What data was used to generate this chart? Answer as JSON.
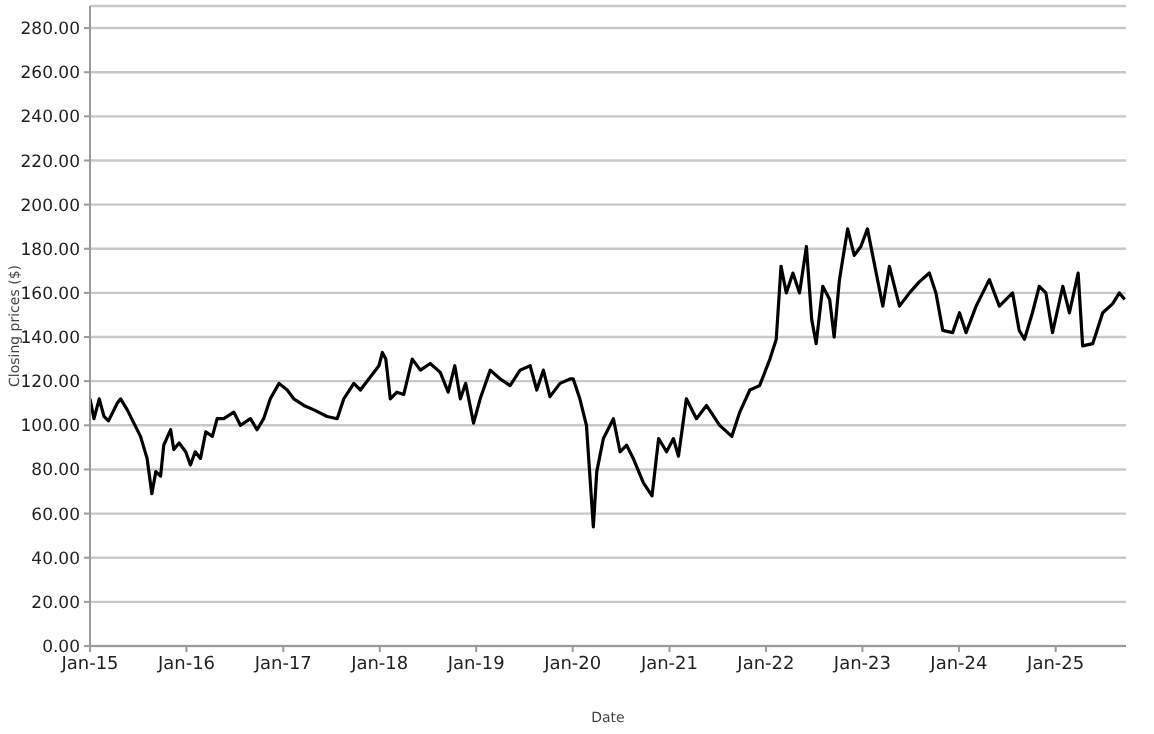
{
  "chart_data": {
    "type": "line",
    "xlabel": "Date",
    "ylabel": "Closing prices ($)",
    "x": [
      "2015-01-01",
      "2015-01-16",
      "2015-02-05",
      "2015-02-23",
      "2015-03-12",
      "2015-04-14",
      "2015-04-27",
      "2015-05-22",
      "2015-06-16",
      "2015-07-11",
      "2015-08-05",
      "2015-08-23",
      "2015-09-07",
      "2015-09-25",
      "2015-10-07",
      "2015-11-02",
      "2015-11-14",
      "2015-12-04",
      "2015-12-29",
      "2016-01-16",
      "2016-02-03",
      "2016-02-23",
      "2016-03-14",
      "2016-04-08",
      "2016-04-26",
      "2016-05-21",
      "2016-06-28",
      "2016-07-23",
      "2016-08-30",
      "2016-09-24",
      "2016-10-19",
      "2016-11-13",
      "2016-12-16",
      "2017-01-16",
      "2017-02-10",
      "2017-03-20",
      "2017-04-27",
      "2017-06-16",
      "2017-07-24",
      "2017-08-18",
      "2017-09-25",
      "2017-10-20",
      "2017-11-27",
      "2017-12-29",
      "2018-01-11",
      "2018-01-24",
      "2018-02-10",
      "2018-03-07",
      "2018-04-02",
      "2018-05-04",
      "2018-06-04",
      "2018-07-11",
      "2018-08-18",
      "2018-09-17",
      "2018-10-12",
      "2018-11-02",
      "2018-11-22",
      "2018-12-22",
      "2019-01-16",
      "2019-02-23",
      "2019-04-02",
      "2019-05-09",
      "2019-06-16",
      "2019-07-24",
      "2019-08-18",
      "2019-09-12",
      "2019-10-07",
      "2019-11-14",
      "2019-12-22",
      "2020-01-03",
      "2020-01-28",
      "2020-02-22",
      "2020-03-19",
      "2020-04-01",
      "2020-04-26",
      "2020-06-03",
      "2020-06-28",
      "2020-07-23",
      "2020-08-17",
      "2020-09-24",
      "2020-10-27",
      "2020-11-21",
      "2020-12-21",
      "2021-01-16",
      "2021-02-04",
      "2021-03-06",
      "2021-04-13",
      "2021-05-21",
      "2021-07-10",
      "2021-08-25",
      "2021-09-24",
      "2021-11-01",
      "2021-12-08",
      "2022-01-16",
      "2022-02-09",
      "2022-02-27",
      "2022-03-19",
      "2022-04-13",
      "2022-05-08",
      "2022-06-03",
      "2022-06-23",
      "2022-07-10",
      "2022-08-04",
      "2022-08-30",
      "2022-09-16",
      "2022-10-06",
      "2022-11-06",
      "2022-12-01",
      "2022-12-26",
      "2023-01-20",
      "2023-02-22",
      "2023-03-19",
      "2023-04-13",
      "2023-05-21",
      "2023-06-28",
      "2023-08-04",
      "2023-09-11",
      "2023-10-06",
      "2023-11-01",
      "2023-12-08",
      "2024-01-03",
      "2024-01-28",
      "2024-03-06",
      "2024-04-25",
      "2024-06-02",
      "2024-07-22",
      "2024-08-16",
      "2024-09-05",
      "2024-10-05",
      "2024-10-31",
      "2024-11-25",
      "2024-12-20",
      "2025-01-28",
      "2025-02-22",
      "2025-03-27",
      "2025-04-13",
      "2025-05-21",
      "2025-06-28",
      "2025-08-04",
      "2025-08-30",
      "2025-09-19"
    ],
    "series": [
      {
        "color": "#000000",
        "values": [
          112,
          103,
          112,
          104,
          102,
          110,
          112,
          107,
          101,
          95,
          85,
          69,
          79,
          77,
          91,
          98,
          89,
          92,
          88,
          82,
          88,
          85,
          97,
          95,
          103,
          103,
          106,
          100,
          103,
          98,
          103,
          112,
          119,
          116,
          112,
          109,
          107,
          104,
          103,
          112,
          119,
          116,
          122,
          127,
          133,
          130,
          112,
          115,
          114,
          130,
          125,
          128,
          124,
          115,
          127,
          112,
          119,
          101,
          112,
          125,
          121,
          118,
          125,
          127,
          116,
          125,
          113,
          119,
          121,
          121,
          112,
          100,
          54,
          79,
          94,
          103,
          88,
          91,
          85,
          74,
          68,
          94,
          88,
          94,
          86,
          112,
          103,
          109,
          100,
          95,
          106,
          116,
          118,
          130,
          139,
          172,
          160,
          169,
          160,
          181,
          148,
          137,
          163,
          157,
          140,
          166,
          189,
          177,
          181,
          189,
          169,
          154,
          172,
          154,
          160,
          165,
          169,
          160,
          143,
          142,
          151,
          142,
          154,
          166,
          154,
          160,
          143,
          139,
          151,
          163,
          160,
          142,
          163,
          151,
          169,
          136,
          137,
          151,
          155,
          160,
          157
        ]
      }
    ],
    "xlim": [
      "2015-01-01",
      "2025-09-24"
    ],
    "xticks": [
      {
        "value": "2015-01-01",
        "label": "Jan-15"
      },
      {
        "value": "2016-01-01",
        "label": "Jan-16"
      },
      {
        "value": "2017-01-01",
        "label": "Jan-17"
      },
      {
        "value": "2018-01-01",
        "label": "Jan-18"
      },
      {
        "value": "2019-01-01",
        "label": "Jan-19"
      },
      {
        "value": "2020-01-01",
        "label": "Jan-20"
      },
      {
        "value": "2021-01-01",
        "label": "Jan-21"
      },
      {
        "value": "2022-01-01",
        "label": "Jan-22"
      },
      {
        "value": "2023-01-01",
        "label": "Jan-23"
      },
      {
        "value": "2024-01-01",
        "label": "Jan-24"
      },
      {
        "value": "2025-01-01",
        "label": "Jan-25"
      }
    ],
    "ylim": [
      0,
      290
    ],
    "yticks": [
      {
        "value": 0,
        "label": "0.00"
      },
      {
        "value": 20,
        "label": "20.00"
      },
      {
        "value": 40,
        "label": "40.00"
      },
      {
        "value": 60,
        "label": "60.00"
      },
      {
        "value": 80,
        "label": "80.00"
      },
      {
        "value": 100,
        "label": "100.00"
      },
      {
        "value": 120,
        "label": "120.00"
      },
      {
        "value": 140,
        "label": "140.00"
      },
      {
        "value": 160,
        "label": "160.00"
      },
      {
        "value": 180,
        "label": "180.00"
      },
      {
        "value": 200,
        "label": "200.00"
      },
      {
        "value": 220,
        "label": "220.00"
      },
      {
        "value": 240,
        "label": "240.00"
      },
      {
        "value": 260,
        "label": "260.00"
      },
      {
        "value": 280,
        "label": "280.00"
      }
    ],
    "grid": "y",
    "marker": "none",
    "line_style": "solid",
    "legend": false
  }
}
